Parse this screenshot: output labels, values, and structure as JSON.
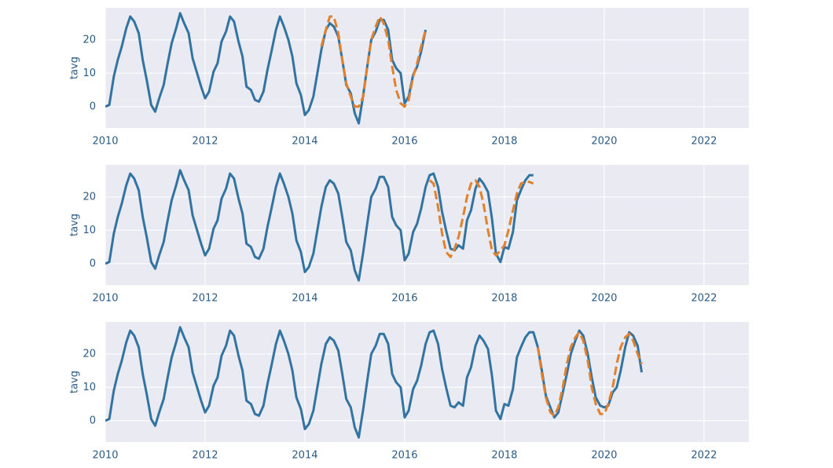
{
  "chart_data": [
    {
      "type": "line",
      "ylabel": "tavg",
      "xlim": [
        2010,
        2022.9
      ],
      "ylim": [
        -6.4,
        29.6
      ],
      "xticks": [
        2010,
        2012,
        2014,
        2016,
        2018,
        2020,
        2022
      ],
      "yticks": [
        0,
        10,
        20
      ],
      "grid": true,
      "series": [
        {
          "color": "#3274a1",
          "dashed": false,
          "x": [
            2010,
            2010.08,
            2010.17,
            2010.25,
            2010.33,
            2010.42,
            2010.5,
            2010.58,
            2010.67,
            2010.75,
            2010.83,
            2010.92,
            2011,
            2011.08,
            2011.17,
            2011.25,
            2011.33,
            2011.42,
            2011.5,
            2011.58,
            2011.67,
            2011.75,
            2011.83,
            2011.92,
            2012,
            2012.08,
            2012.17,
            2012.25,
            2012.33,
            2012.42,
            2012.5,
            2012.58,
            2012.67,
            2012.75,
            2012.83,
            2012.92,
            2013,
            2013.08,
            2013.17,
            2013.25,
            2013.33,
            2013.42,
            2013.5,
            2013.58,
            2013.67,
            2013.75,
            2013.83,
            2013.92,
            2014,
            2014.08,
            2014.17,
            2014.25,
            2014.33,
            2014.42,
            2014.5,
            2014.58,
            2014.67,
            2014.75,
            2014.83,
            2014.92,
            2015,
            2015.08,
            2015.17,
            2015.25,
            2015.33,
            2015.42,
            2015.5,
            2015.58,
            2015.67,
            2015.75,
            2015.83,
            2015.92,
            2016,
            2016.08,
            2016.17,
            2016.25,
            2016.33,
            2016.42
          ],
          "values": [
            0,
            0.5,
            9,
            14,
            18,
            23.5,
            27,
            25.5,
            22,
            14,
            8,
            0.5,
            -1.5,
            2.5,
            6.5,
            13,
            19,
            23.5,
            28,
            25,
            22,
            14.5,
            10.5,
            6,
            2.5,
            4.5,
            10.5,
            13,
            19.5,
            22.5,
            27,
            25.5,
            19.5,
            15,
            6,
            5,
            2,
            1.5,
            4.5,
            11,
            16.5,
            23,
            27,
            24,
            20,
            15,
            7,
            3.5,
            -2.5,
            -1,
            3,
            10,
            17,
            23,
            25,
            24,
            21,
            14,
            6.5,
            4,
            -2,
            -5,
            3.5,
            12,
            20,
            22.5,
            26,
            26,
            23,
            14,
            11.5,
            10,
            1,
            3,
            9.5,
            12,
            16.5,
            23
          ]
        },
        {
          "color": "#e1812c",
          "dashed": true,
          "x": [
            2014.33,
            2014.42,
            2014.5,
            2014.58,
            2014.67,
            2014.75,
            2014.83,
            2014.92,
            2015,
            2015.08,
            2015.17,
            2015.25,
            2015.33,
            2015.42,
            2015.5,
            2015.58,
            2015.67,
            2015.75,
            2015.83,
            2015.92,
            2016,
            2016.08,
            2016.17,
            2016.25,
            2016.33,
            2016.42
          ],
          "values": [
            18,
            23,
            27,
            27,
            22,
            14,
            7,
            3,
            0,
            0,
            3,
            12,
            20,
            24,
            27,
            25,
            20,
            12,
            5,
            1,
            0,
            2,
            9,
            13,
            18,
            23
          ]
        }
      ]
    },
    {
      "type": "line",
      "ylabel": "tavg",
      "xlim": [
        2010,
        2022.9
      ],
      "ylim": [
        -6.4,
        29.6
      ],
      "xticks": [
        2010,
        2012,
        2014,
        2016,
        2018,
        2020,
        2022
      ],
      "yticks": [
        0,
        10,
        20
      ],
      "grid": true,
      "series": [
        {
          "color": "#3274a1",
          "dashed": false,
          "x": [
            2010,
            2010.08,
            2010.17,
            2010.25,
            2010.33,
            2010.42,
            2010.5,
            2010.58,
            2010.67,
            2010.75,
            2010.83,
            2010.92,
            2011,
            2011.08,
            2011.17,
            2011.25,
            2011.33,
            2011.42,
            2011.5,
            2011.58,
            2011.67,
            2011.75,
            2011.83,
            2011.92,
            2012,
            2012.08,
            2012.17,
            2012.25,
            2012.33,
            2012.42,
            2012.5,
            2012.58,
            2012.67,
            2012.75,
            2012.83,
            2012.92,
            2013,
            2013.08,
            2013.17,
            2013.25,
            2013.33,
            2013.42,
            2013.5,
            2013.58,
            2013.67,
            2013.75,
            2013.83,
            2013.92,
            2014,
            2014.08,
            2014.17,
            2014.25,
            2014.33,
            2014.42,
            2014.5,
            2014.58,
            2014.67,
            2014.75,
            2014.83,
            2014.92,
            2015,
            2015.08,
            2015.17,
            2015.25,
            2015.33,
            2015.42,
            2015.5,
            2015.58,
            2015.67,
            2015.75,
            2015.83,
            2015.92,
            2016,
            2016.08,
            2016.17,
            2016.25,
            2016.33,
            2016.42,
            2016.5,
            2016.58,
            2016.67,
            2016.75,
            2016.83,
            2016.92,
            2017,
            2017.08,
            2017.17,
            2017.25,
            2017.33,
            2017.42,
            2017.5,
            2017.58,
            2017.67,
            2017.75,
            2017.83,
            2017.92,
            2018,
            2018.08,
            2018.17,
            2018.25,
            2018.33,
            2018.42,
            2018.5,
            2018.58
          ],
          "values": [
            0,
            0.5,
            9,
            14,
            18,
            23.5,
            27,
            25.5,
            22,
            14,
            8,
            0.5,
            -1.5,
            2.5,
            6.5,
            13,
            19,
            23.5,
            28,
            25,
            22,
            14.5,
            10.5,
            6,
            2.5,
            4.5,
            10.5,
            13,
            19.5,
            22.5,
            27,
            25.5,
            19.5,
            15,
            6,
            5,
            2,
            1.5,
            4.5,
            11,
            16.5,
            23,
            27,
            24,
            20,
            15,
            7,
            3.5,
            -2.5,
            -1,
            3,
            10,
            17,
            23,
            25,
            24,
            21,
            14,
            6.5,
            4,
            -2,
            -5,
            3.5,
            12,
            20,
            22.5,
            26,
            26,
            23,
            14,
            11.5,
            10,
            1,
            3,
            9.5,
            12,
            16.5,
            23,
            26.5,
            27,
            23,
            15.5,
            10,
            4.5,
            4,
            5.5,
            4.5,
            13,
            16,
            22.5,
            25.5,
            24,
            21.5,
            13.5,
            3,
            0.5,
            5,
            4.5,
            9.5,
            19,
            22,
            25,
            26.5,
            26.5
          ]
        },
        {
          "color": "#e1812c",
          "dashed": true,
          "x": [
            2016.5,
            2016.58,
            2016.67,
            2016.75,
            2016.83,
            2016.92,
            2017,
            2017.08,
            2017.17,
            2017.25,
            2017.33,
            2017.42,
            2017.5,
            2017.58,
            2017.67,
            2017.75,
            2017.83,
            2017.92,
            2018,
            2018.08,
            2018.17,
            2018.25,
            2018.33,
            2018.42,
            2018.5,
            2018.58
          ],
          "values": [
            25,
            24,
            17,
            9,
            3.5,
            2,
            4.5,
            8,
            14,
            20,
            24,
            25,
            23,
            18,
            10,
            4,
            2.5,
            4,
            5.5,
            10,
            16,
            21,
            24,
            24.5,
            24.5,
            24
          ]
        }
      ]
    },
    {
      "type": "line",
      "ylabel": "tavg",
      "xlim": [
        2010,
        2022.9
      ],
      "ylim": [
        -6.4,
        29.6
      ],
      "xticks": [
        2010,
        2012,
        2014,
        2016,
        2018,
        2020,
        2022
      ],
      "yticks": [
        0,
        10,
        20
      ],
      "grid": true,
      "series": [
        {
          "color": "#3274a1",
          "dashed": false,
          "x": [
            2010,
            2010.08,
            2010.17,
            2010.25,
            2010.33,
            2010.42,
            2010.5,
            2010.58,
            2010.67,
            2010.75,
            2010.83,
            2010.92,
            2011,
            2011.08,
            2011.17,
            2011.25,
            2011.33,
            2011.42,
            2011.5,
            2011.58,
            2011.67,
            2011.75,
            2011.83,
            2011.92,
            2012,
            2012.08,
            2012.17,
            2012.25,
            2012.33,
            2012.42,
            2012.5,
            2012.58,
            2012.67,
            2012.75,
            2012.83,
            2012.92,
            2013,
            2013.08,
            2013.17,
            2013.25,
            2013.33,
            2013.42,
            2013.5,
            2013.58,
            2013.67,
            2013.75,
            2013.83,
            2013.92,
            2014,
            2014.08,
            2014.17,
            2014.25,
            2014.33,
            2014.42,
            2014.5,
            2014.58,
            2014.67,
            2014.75,
            2014.83,
            2014.92,
            2015,
            2015.08,
            2015.17,
            2015.25,
            2015.33,
            2015.42,
            2015.5,
            2015.58,
            2015.67,
            2015.75,
            2015.83,
            2015.92,
            2016,
            2016.08,
            2016.17,
            2016.25,
            2016.33,
            2016.42,
            2016.5,
            2016.58,
            2016.67,
            2016.75,
            2016.83,
            2016.92,
            2017,
            2017.08,
            2017.17,
            2017.25,
            2017.33,
            2017.42,
            2017.5,
            2017.58,
            2017.67,
            2017.75,
            2017.83,
            2017.92,
            2018,
            2018.08,
            2018.17,
            2018.25,
            2018.33,
            2018.42,
            2018.5,
            2018.58,
            2018.67,
            2018.75,
            2018.83,
            2018.92,
            2019,
            2019.08,
            2019.17,
            2019.25,
            2019.33,
            2019.42,
            2019.5,
            2019.58,
            2019.67,
            2019.75,
            2019.83,
            2019.92,
            2020,
            2020.08,
            2020.17,
            2020.25,
            2020.33,
            2020.42,
            2020.5,
            2020.58,
            2020.67,
            2020.75
          ],
          "values": [
            0,
            0.5,
            9,
            14,
            18,
            23.5,
            27,
            25.5,
            22,
            14,
            8,
            0.5,
            -1.5,
            2.5,
            6.5,
            13,
            19,
            23.5,
            28,
            25,
            22,
            14.5,
            10.5,
            6,
            2.5,
            4.5,
            10.5,
            13,
            19.5,
            22.5,
            27,
            25.5,
            19.5,
            15,
            6,
            5,
            2,
            1.5,
            4.5,
            11,
            16.5,
            23,
            27,
            24,
            20,
            15,
            7,
            3.5,
            -2.5,
            -1,
            3,
            10,
            17,
            23,
            25,
            24,
            21,
            14,
            6.5,
            4,
            -2,
            -5,
            3.5,
            12,
            20,
            22.5,
            26,
            26,
            23,
            14,
            11.5,
            10,
            1,
            3,
            9.5,
            12,
            16.5,
            23,
            26.5,
            27,
            23,
            15.5,
            10,
            4.5,
            4,
            5.5,
            4.5,
            13,
            16,
            22.5,
            25.5,
            24,
            21.5,
            13.5,
            3,
            0.5,
            5,
            4.5,
            9.5,
            19,
            22,
            25,
            26.5,
            26.5,
            22,
            15,
            7.5,
            4,
            1,
            2.5,
            8.5,
            14,
            20,
            24,
            27,
            25.5,
            20,
            13,
            7,
            4.5,
            4,
            4.5,
            8.5,
            10,
            15,
            22,
            26.5,
            25.5,
            22.5,
            14.5
          ]
        },
        {
          "color": "#e1812c",
          "dashed": true,
          "x": [
            2018.67,
            2018.75,
            2018.83,
            2018.92,
            2019,
            2019.08,
            2019.17,
            2019.25,
            2019.33,
            2019.42,
            2019.5,
            2019.58,
            2019.67,
            2019.75,
            2019.83,
            2019.92,
            2020,
            2020.08,
            2020.17,
            2020.25,
            2020.33,
            2020.42,
            2020.5,
            2020.58,
            2020.67,
            2020.75
          ],
          "values": [
            22,
            14,
            7,
            2.5,
            1.5,
            4,
            10,
            17,
            22,
            25,
            26.5,
            24,
            18,
            10,
            5,
            2,
            2,
            5,
            10,
            17,
            22,
            25,
            26,
            24,
            20,
            17
          ]
        }
      ]
    }
  ]
}
